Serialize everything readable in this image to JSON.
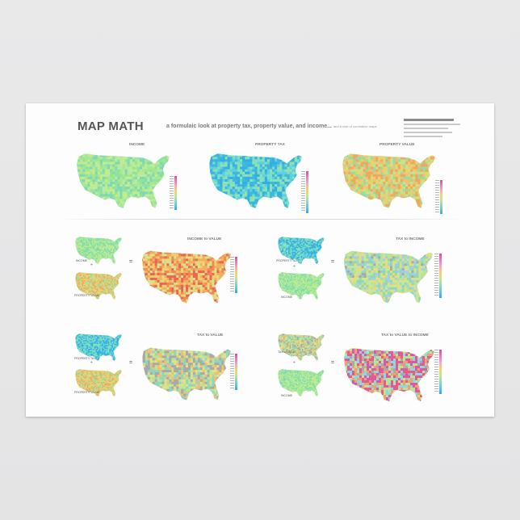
{
  "title": "MAP MATH",
  "subtitle": "a formulaic look at property tax, property value, and income...",
  "subtitle_small": "and a side of correlation maps",
  "top_maps": [
    {
      "label": "INCOME",
      "palette": [
        "#8ee3a0",
        "#a6e88f",
        "#c4ec8c",
        "#7fd8b5",
        "#b8e9a0"
      ]
    },
    {
      "label": "PROPERTY TAX",
      "palette": [
        "#3fb8dd",
        "#5ed0e0",
        "#7ddfc4",
        "#35aee3",
        "#90e3b0"
      ]
    },
    {
      "label": "PROPERTY VALUE",
      "palette": [
        "#e7d36b",
        "#c8e38a",
        "#f0a85a",
        "#9ed9a0",
        "#e8c37a"
      ]
    }
  ],
  "formulas": [
    {
      "label": "INCOME to VALUE",
      "op1": "÷",
      "eq": "=",
      "small_labels": [
        "INCOME",
        "PROPERTY VALUE"
      ],
      "palette": [
        "#f08a55",
        "#f0b060",
        "#e8655a",
        "#f0d070",
        "#d9e38a"
      ]
    },
    {
      "label": "TAX to INCOME",
      "op1": "÷",
      "eq": "=",
      "small_labels": [
        "PROPERTY TAX",
        "INCOME"
      ],
      "palette": [
        "#b6e39a",
        "#8fd7b8",
        "#e9dc7a",
        "#a0d0e8",
        "#c9e69a"
      ]
    },
    {
      "label": "TAX to VALUE",
      "op1": "÷",
      "eq": "=",
      "small_labels": [
        "PROPERTY TAX",
        "PROPERTY VALUE"
      ],
      "palette": [
        "#b9e497",
        "#e3e08a",
        "#8fd6c0",
        "#f0c070",
        "#a9a9a9"
      ]
    },
    {
      "label": "TAX to VALUE to INCOME",
      "op1": "÷",
      "op2": "÷",
      "eq": "=",
      "small_labels": [
        "TAX to VALUE",
        "INCOME"
      ],
      "palette": [
        "#e85a8a",
        "#b9e497",
        "#f0a070",
        "#8fd6e0",
        "#d65aa8"
      ]
    }
  ],
  "colors": {
    "legend_scale": [
      "#d64fa0",
      "#e87bb8",
      "#f2a5c9",
      "#f6d06a",
      "#c8e68a",
      "#8fdcb0",
      "#5fc8e0",
      "#3ba5e0"
    ],
    "no_data": "#a9a9a9"
  }
}
